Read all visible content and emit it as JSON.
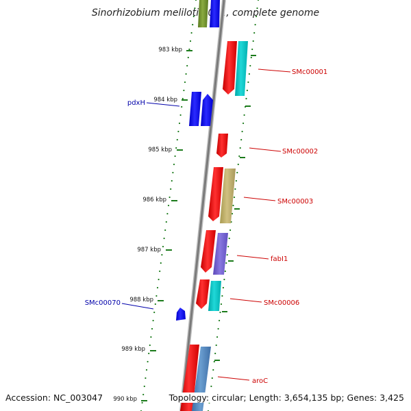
{
  "title": "Sinorhizobium meliloti 1021, complete genome",
  "scale_ticks": [
    "983 kbp",
    "984 kbp",
    "985 kbp",
    "986 kbp",
    "987 kbp",
    "988 kbp",
    "989 kbp",
    "990 kbp"
  ],
  "genes": [
    {
      "name": "SMc00001",
      "strand": "reverse",
      "label_color": "#cc0000"
    },
    {
      "name": "pdxH",
      "strand": "forward",
      "label_color": "#0000aa"
    },
    {
      "name": "SMc00002",
      "strand": "reverse",
      "label_color": "#cc0000"
    },
    {
      "name": "SMc00003",
      "strand": "reverse",
      "label_color": "#cc0000"
    },
    {
      "name": "fabI1",
      "strand": "reverse",
      "label_color": "#cc0000"
    },
    {
      "name": "SMc00070",
      "strand": "forward",
      "label_color": "#0000aa"
    },
    {
      "name": "SMc00006",
      "strand": "reverse",
      "label_color": "#cc0000"
    },
    {
      "name": "aroC",
      "strand": "reverse",
      "label_color": "#cc0000"
    }
  ],
  "colors": {
    "forward_gene": "#0000ff",
    "reverse_gene": "#ff0000",
    "backbone": "#7a7a7a",
    "tick": "#1a7a1a"
  },
  "footer": {
    "accession": "Accession: NC_003047",
    "topology": "Topology: circular; Length: 3,654,135 bp; Genes: 3,425"
  }
}
